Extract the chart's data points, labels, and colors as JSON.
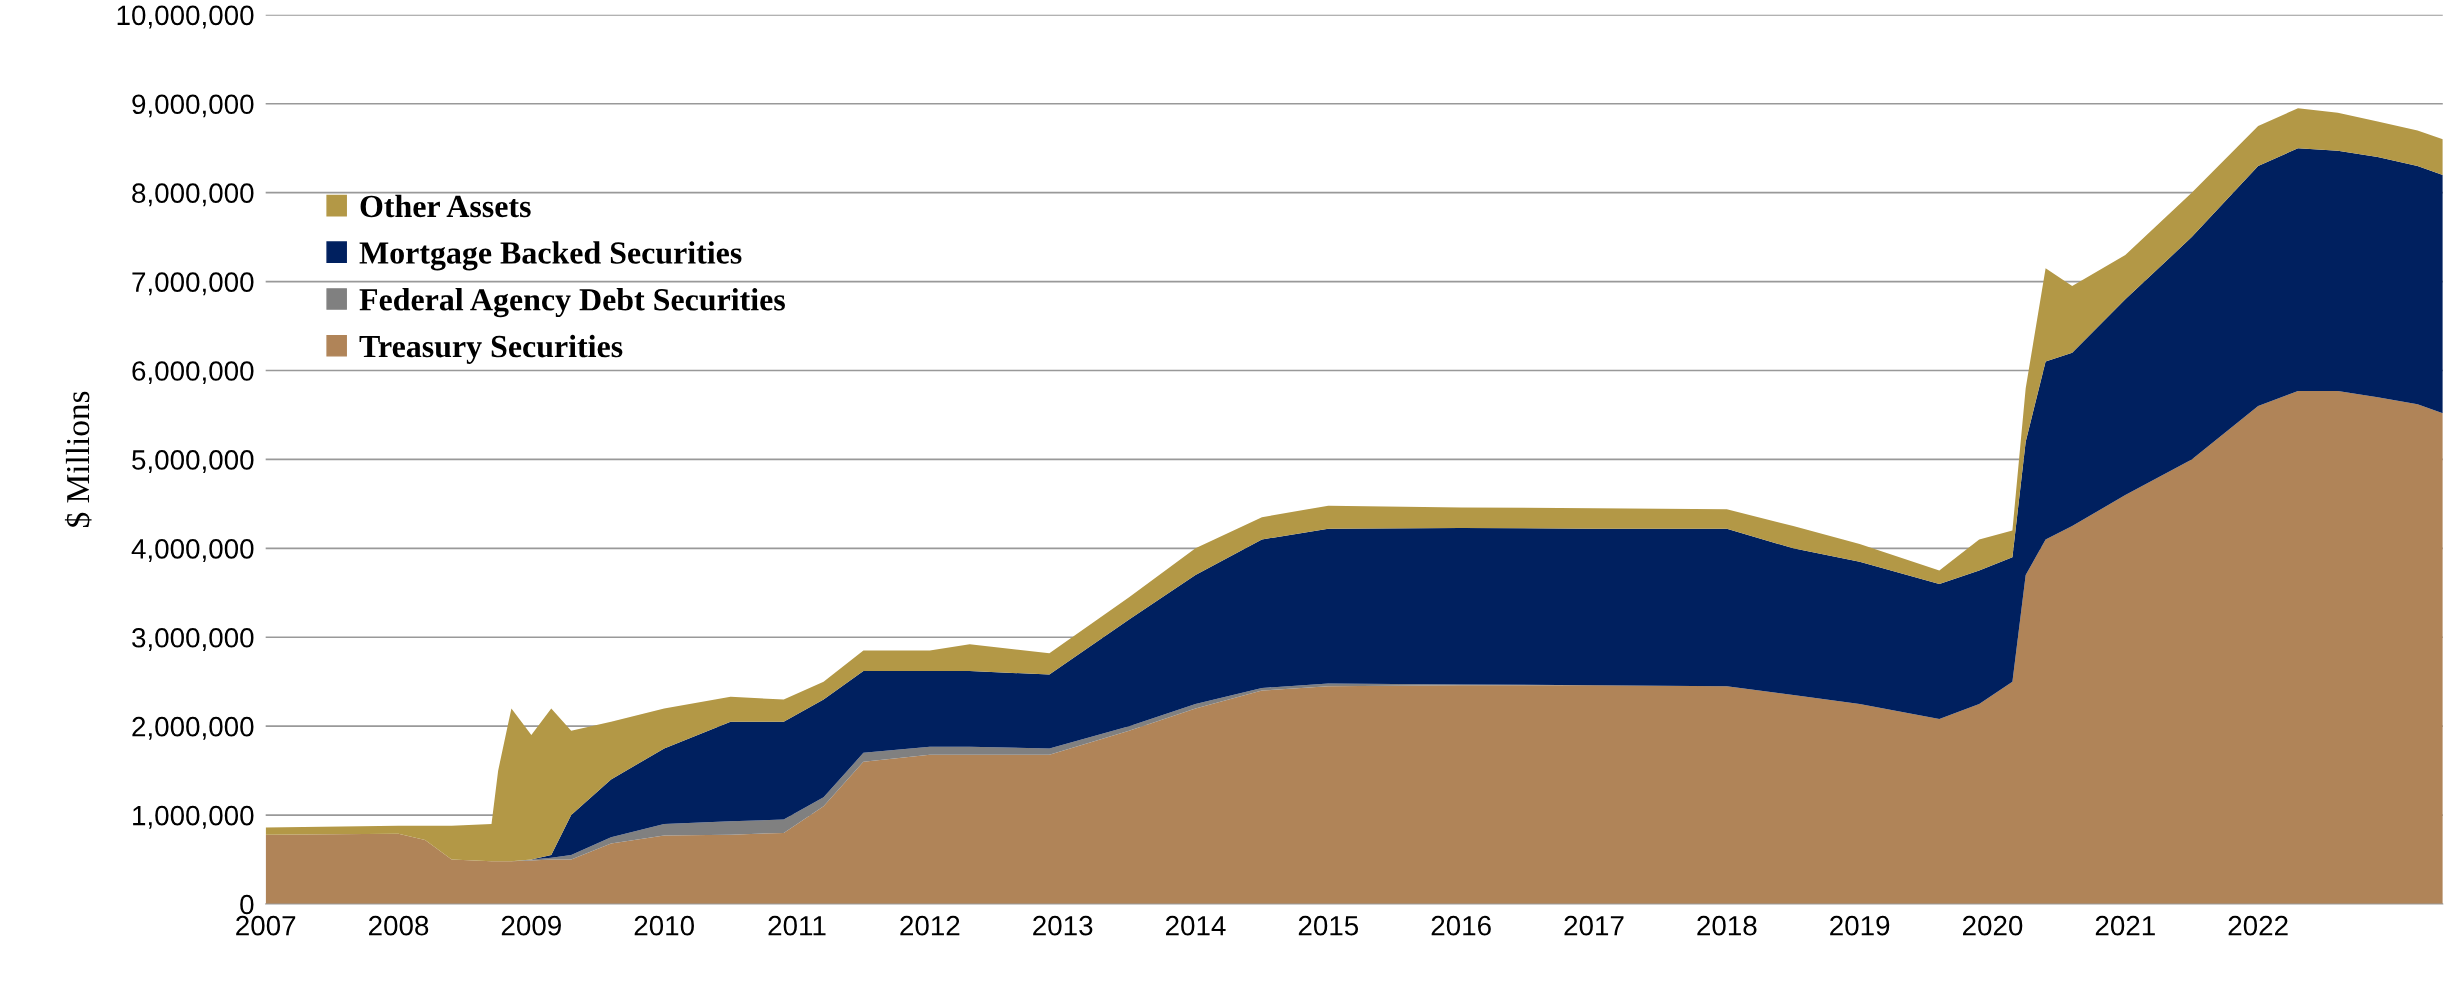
{
  "chart_data": {
    "type": "area",
    "stacked": true,
    "ylabel": "$ Millions",
    "grid": "y",
    "legend": "top left",
    "x": [
      2007.0,
      2008.0,
      2008.2,
      2008.4,
      2008.7,
      2008.75,
      2008.85,
      2009.0,
      2009.15,
      2009.3,
      2009.6,
      2010.0,
      2010.5,
      2010.9,
      2011.2,
      2011.5,
      2012.0,
      2012.3,
      2012.9,
      2013.5,
      2014.0,
      2014.5,
      2015.0,
      2016.0,
      2017.0,
      2018.0,
      2018.5,
      2019.0,
      2019.6,
      2019.9,
      2020.15,
      2020.25,
      2020.4,
      2020.6,
      2021.0,
      2021.5,
      2022.0,
      2022.3,
      2022.6,
      2022.9,
      2023.2,
      2023.39
    ],
    "series": [
      {
        "name": "Treasury Securities",
        "color": "#b08458",
        "values": [
          780000,
          790000,
          720000,
          500000,
          480000,
          480000,
          480000,
          490000,
          500000,
          500000,
          680000,
          770000,
          780000,
          800000,
          1100000,
          1600000,
          1680000,
          1680000,
          1680000,
          1950000,
          2200000,
          2400000,
          2450000,
          2460000,
          2460000,
          2450000,
          2350000,
          2250000,
          2080000,
          2250000,
          2500000,
          3700000,
          4100000,
          4250000,
          4600000,
          5000000,
          5600000,
          5770000,
          5770000,
          5700000,
          5620000,
          5520000
        ]
      },
      {
        "name": "Federal Agency Debt Securities",
        "color": "#808080",
        "values": [
          0,
          0,
          0,
          0,
          0,
          0,
          0,
          10000,
          20000,
          50000,
          70000,
          130000,
          150000,
          150000,
          100000,
          100000,
          90000,
          90000,
          70000,
          50000,
          50000,
          30000,
          30000,
          10000,
          0,
          0,
          0,
          0,
          0,
          0,
          0,
          0,
          0,
          0,
          0,
          0,
          0,
          0,
          0,
          0,
          0,
          0
        ]
      },
      {
        "name": "Mortgage Backed Securities",
        "color": "#00205f",
        "values": [
          0,
          0,
          0,
          0,
          0,
          0,
          0,
          0,
          30000,
          450000,
          650000,
          850000,
          1120000,
          1100000,
          1100000,
          920000,
          850000,
          850000,
          830000,
          1200000,
          1450000,
          1670000,
          1740000,
          1760000,
          1760000,
          1770000,
          1650000,
          1600000,
          1520000,
          1500000,
          1400000,
          1500000,
          2000000,
          1950000,
          2200000,
          2500000,
          2700000,
          2730000,
          2700000,
          2700000,
          2680000,
          2680000
        ]
      },
      {
        "name": "Other Assets",
        "color": "#b39846",
        "values": [
          80000,
          90000,
          160000,
          380000,
          420000,
          1020000,
          1720000,
          1400000,
          1650000,
          950000,
          650000,
          450000,
          280000,
          250000,
          200000,
          230000,
          230000,
          300000,
          240000,
          250000,
          300000,
          250000,
          260000,
          230000,
          230000,
          220000,
          250000,
          200000,
          150000,
          350000,
          300000,
          600000,
          1050000,
          750000,
          500000,
          500000,
          450000,
          450000,
          430000,
          400000,
          400000,
          400000
        ]
      }
    ],
    "xlim": [
      2007,
      2023.39
    ],
    "xticks": [
      2007,
      2008,
      2009,
      2010,
      2011,
      2012,
      2013,
      2014,
      2015,
      2016,
      2017,
      2018,
      2019,
      2020,
      2021,
      2022
    ],
    "ylim": [
      0,
      10000000
    ],
    "yticks": [
      0,
      {
        "value": 1000000,
        "label": "1,000,000"
      },
      {
        "value": 2000000,
        "label": "2,000,000"
      },
      {
        "value": 3000000,
        "label": "3,000,000"
      },
      {
        "value": 4000000,
        "label": "4,000,000"
      },
      {
        "value": 5000000,
        "label": "5,000,000"
      },
      {
        "value": 6000000,
        "label": "6,000,000"
      },
      {
        "value": 7000000,
        "label": "7,000,000"
      },
      {
        "value": 8000000,
        "label": "8,000,000"
      },
      {
        "value": 9000000,
        "label": "9,000,000"
      },
      {
        "value": 10000000,
        "label": "10,000,000"
      }
    ]
  }
}
